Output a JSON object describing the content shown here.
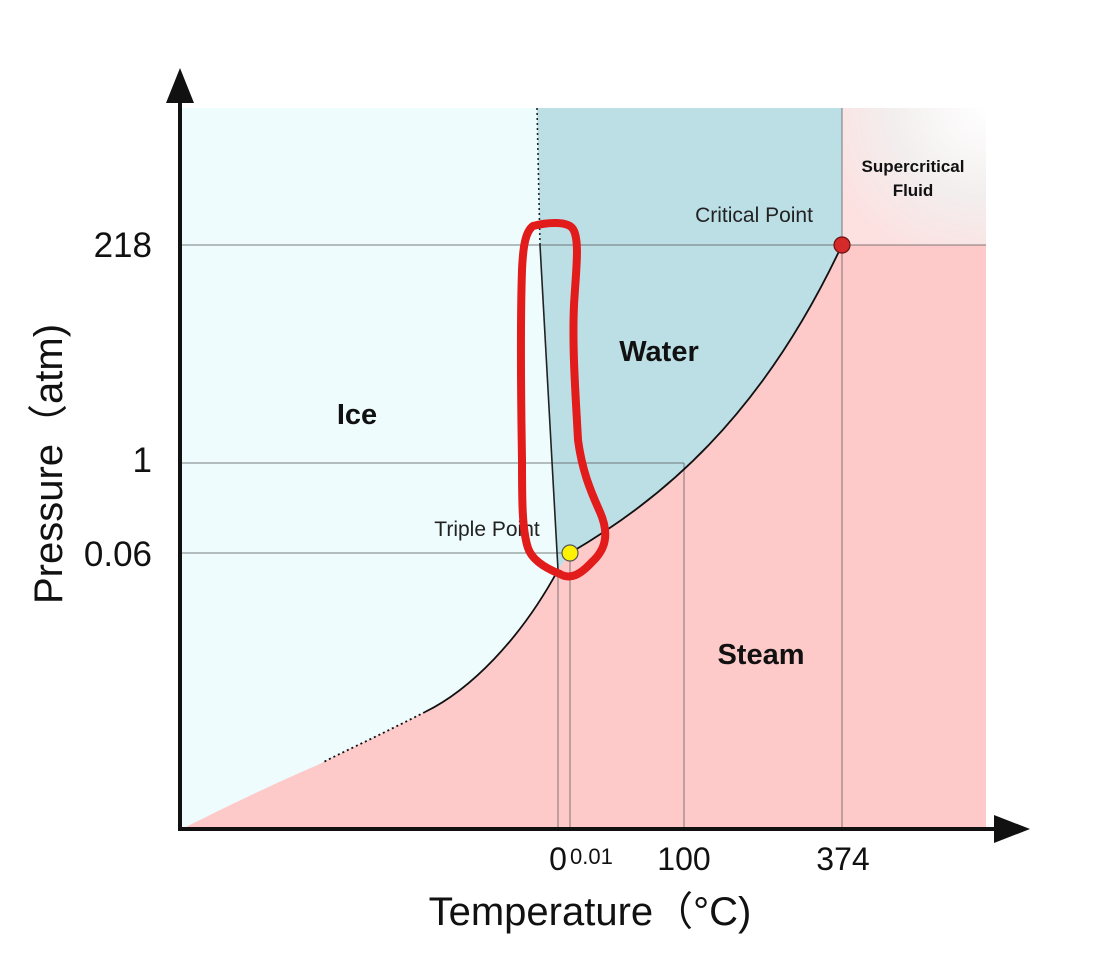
{
  "axes": {
    "x_title": "Temperature（°C)",
    "y_title": "Pressure（atm)",
    "x_ticks": [
      "0",
      "0.01",
      "100",
      "374"
    ],
    "y_ticks": [
      "218",
      "1",
      "0.06"
    ]
  },
  "regions": {
    "ice": "Ice",
    "water": "Water",
    "steam": "Steam",
    "supercritical_line1": "Supercritical",
    "supercritical_line2": "Fluid"
  },
  "annotations": {
    "critical_point": "Critical Point",
    "triple_point": "Triple Point"
  },
  "colors": {
    "ice": "#eefcfd",
    "water": "#bcdfe6",
    "steam": "#fdc9c9",
    "critical_point_marker": "#d42a2a",
    "triple_point_marker": "#fff200",
    "highlight_outline": "#e21b1b"
  }
}
